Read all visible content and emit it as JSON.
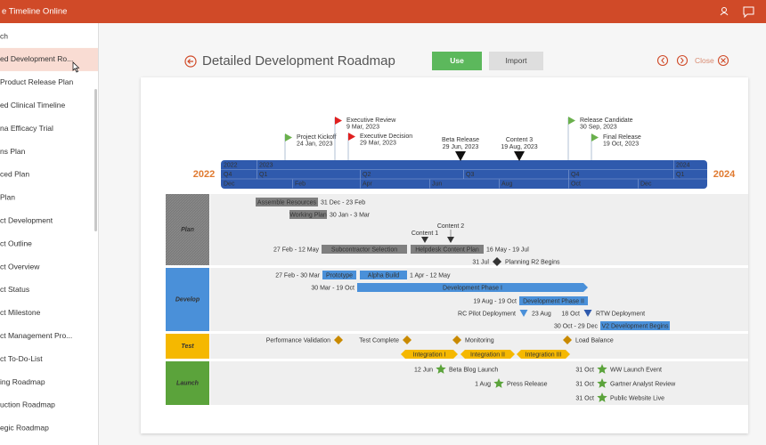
{
  "app": {
    "title": "e Timeline Online"
  },
  "sidebar": {
    "items": [
      "ch",
      "ed Development Ro...",
      "Product Release Plan",
      "ed Clinical Timeline",
      "na Efficacy Trial",
      "ns Plan",
      "ced Plan",
      "Plan",
      "ct Development",
      "ct Outline",
      "ct Overview",
      "ct Status",
      "ct Milestone",
      "ct Management Pro...",
      "ct To-Do-List",
      "ing Roadmap",
      "uction Roadmap",
      "egic Roadmap"
    ]
  },
  "header": {
    "title": "Detailed Development Roadmap",
    "use": "Use",
    "import": "Import",
    "close": "Close"
  },
  "timeline": {
    "start_year": "2022",
    "end_year": "2024",
    "milestones": [
      {
        "label": "Project Kickoff",
        "date": "24 Jan, 2023"
      },
      {
        "label": "Executive Review",
        "date": "9 Mar, 2023"
      },
      {
        "label": "Executive Decision",
        "date": "29 Mar, 2023"
      },
      {
        "label": "Beta Release",
        "date": "29 Jun, 2023"
      },
      {
        "label": "Content 3",
        "date": "19 Aug, 2023"
      },
      {
        "label": "Release Candidate",
        "date": "30 Sep, 2023"
      },
      {
        "label": "Final Release",
        "date": "19 Oct, 2023"
      }
    ],
    "scale": {
      "years": [
        "2022",
        "2023",
        "2024"
      ],
      "quarters": [
        "Q4",
        "Q1",
        "Q2",
        "Q3",
        "Q4",
        "Q1"
      ],
      "months": [
        "Dec",
        "Feb",
        "Apr",
        "Jun",
        "Aug",
        "Oct",
        "Dec"
      ]
    },
    "lanes": [
      {
        "name": "Plan",
        "items": [
          {
            "label": "Assemble Resources",
            "dates": "31 Dec - 23 Feb"
          },
          {
            "label": "Working Plan",
            "dates": "30 Jan - 3 Mar"
          },
          {
            "label": "Subcontractor Selection",
            "dates": "27 Feb - 12 May"
          },
          {
            "label": "Helpdesk Content Plan",
            "dates": "16 May - 19 Jul"
          },
          {
            "label": "Content 1"
          },
          {
            "label": "Content 2"
          },
          {
            "label": "Planning R2 Begins",
            "dates": "31 Jul"
          }
        ]
      },
      {
        "name": "Develop",
        "items": [
          {
            "label": "Prototype",
            "dates": "27 Feb - 30 Mar"
          },
          {
            "label": "Alpha Build",
            "dates": "1 Apr - 12 May"
          },
          {
            "label": "Development Phase I",
            "dates": "30 Mar - 19 Oct"
          },
          {
            "label": "Development Phase II",
            "dates": "19 Aug - 19 Oct"
          },
          {
            "label": "RC Pilot Deployment",
            "dates": "23 Aug"
          },
          {
            "label": "RTW Deployment",
            "dates": "18 Oct"
          },
          {
            "label": "V2 Development Begins",
            "dates": "30 Oct - 29 Dec"
          }
        ]
      },
      {
        "name": "Test",
        "items": [
          {
            "label": "Performance Validation"
          },
          {
            "label": "Test Complete"
          },
          {
            "label": "Monitoring"
          },
          {
            "label": "Load Balance"
          },
          {
            "label": "Integration I"
          },
          {
            "label": "Integration II"
          },
          {
            "label": "Integration III"
          }
        ]
      },
      {
        "name": "Launch",
        "items": [
          {
            "label": "Beta Blog Launch",
            "dates": "12 Jun"
          },
          {
            "label": "Press Release",
            "dates": "1 Aug"
          },
          {
            "label": "WW Launch Event",
            "dates": "31 Oct"
          },
          {
            "label": "Gartner Analyst Review",
            "dates": "31 Oct"
          },
          {
            "label": "Public Website Live",
            "dates": "31 Oct"
          }
        ]
      }
    ]
  }
}
